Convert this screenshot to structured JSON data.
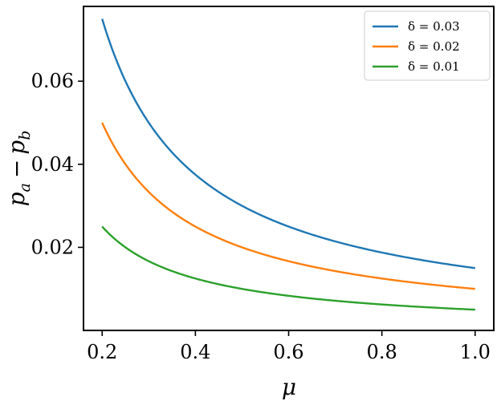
{
  "chart_data": {
    "type": "line",
    "xlabel": "μ",
    "ylabel": "p_a − p_b",
    "ylabel_main": "p",
    "ylabel_sub_a": "a",
    "ylabel_minus": "−",
    "ylabel_sub_b": "b",
    "xlim": [
      0.16,
      1.04
    ],
    "ylim": [
      0.0,
      0.078
    ],
    "x_ticks": [
      0.2,
      0.4,
      0.6,
      0.8,
      1.0
    ],
    "x_tick_labels": [
      "0.2",
      "0.4",
      "0.6",
      "0.8",
      "1.0"
    ],
    "y_ticks": [
      0.02,
      0.04,
      0.06
    ],
    "y_tick_labels": [
      "0.02",
      "0.04",
      "0.06"
    ],
    "grid": false,
    "legend_position": "top-right",
    "formula": "y = delta / (2 * mu)",
    "x": [
      0.2,
      0.25,
      0.3,
      0.35,
      0.4,
      0.45,
      0.5,
      0.55,
      0.6,
      0.65,
      0.7,
      0.75,
      0.8,
      0.85,
      0.9,
      0.95,
      1.0
    ],
    "series": [
      {
        "name": "δ = 0.03",
        "color": "#1f77b4",
        "values": [
          0.075,
          0.06,
          0.05,
          0.0429,
          0.0375,
          0.0333,
          0.03,
          0.0273,
          0.025,
          0.0231,
          0.0214,
          0.02,
          0.0188,
          0.0176,
          0.0167,
          0.0158,
          0.015
        ]
      },
      {
        "name": "δ = 0.02",
        "color": "#ff7f0e",
        "values": [
          0.05,
          0.04,
          0.0333,
          0.0286,
          0.025,
          0.0222,
          0.02,
          0.0182,
          0.0167,
          0.0154,
          0.0143,
          0.0133,
          0.0125,
          0.0118,
          0.0111,
          0.0105,
          0.01
        ]
      },
      {
        "name": "δ = 0.01",
        "color": "#2ca02c",
        "values": [
          0.025,
          0.02,
          0.0167,
          0.0143,
          0.0125,
          0.0111,
          0.01,
          0.0091,
          0.0083,
          0.0077,
          0.0071,
          0.0067,
          0.0063,
          0.0059,
          0.0056,
          0.0053,
          0.005
        ]
      }
    ]
  }
}
